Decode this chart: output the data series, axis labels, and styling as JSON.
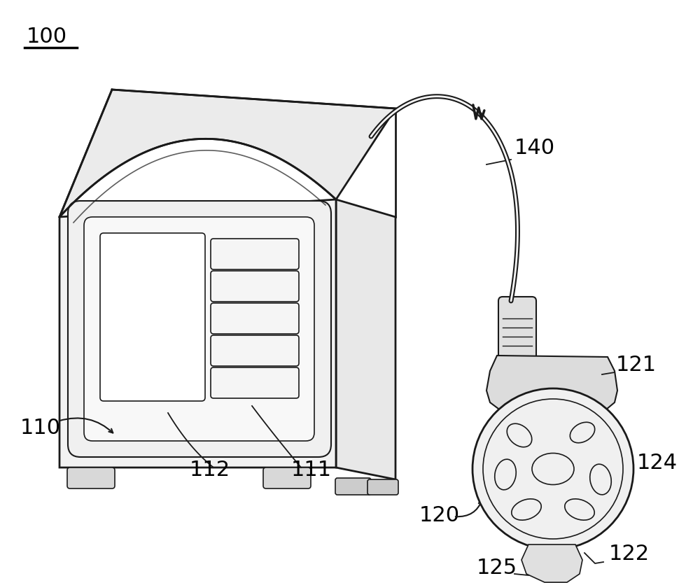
{
  "background": "#ffffff",
  "line_color": "#1a1a1a",
  "label_color": "#000000",
  "figsize": [
    10.0,
    8.33
  ]
}
